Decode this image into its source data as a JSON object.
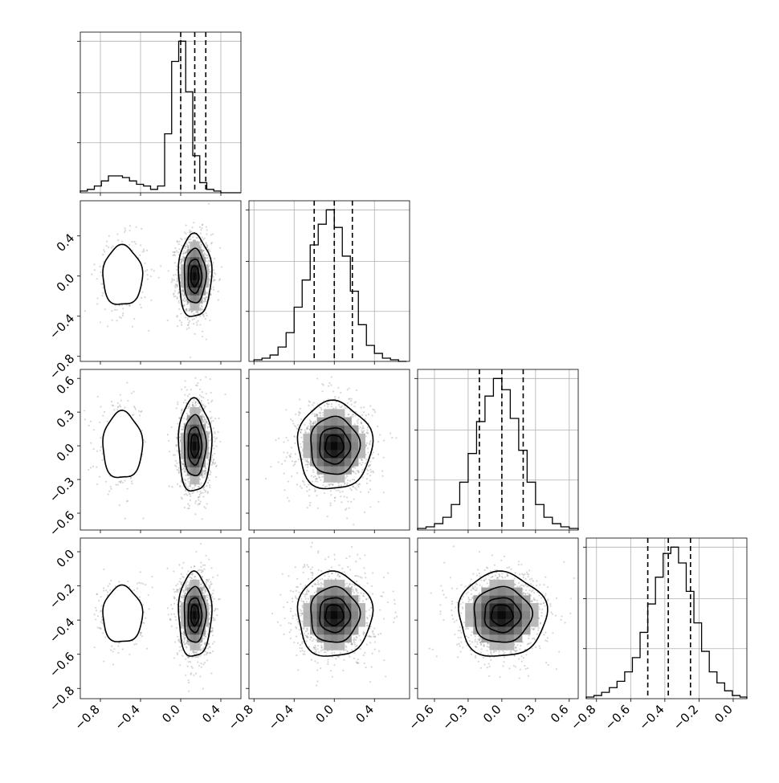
{
  "chart_data": {
    "type": "corner",
    "grid": true,
    "quantiles": [
      0.16,
      0.5,
      0.84
    ],
    "parameters": [
      {
        "range": [
          -1.0,
          0.6
        ],
        "ticks": [
          -0.8,
          -0.4,
          0.0,
          0.4
        ],
        "tick_labels": [
          "−0.8",
          "−0.4",
          "0.0",
          "0.4"
        ],
        "quantile_values": [
          0.0,
          0.14,
          0.25
        ],
        "hist_bins": [
          -1.0,
          -0.93,
          -0.86,
          -0.79,
          -0.72,
          -0.65,
          -0.58,
          -0.51,
          -0.44,
          -0.37,
          -0.3,
          -0.23,
          -0.16,
          -0.09,
          -0.02,
          0.05,
          0.12,
          0.19,
          0.26,
          0.33,
          0.4,
          0.47,
          0.54,
          0.6
        ],
        "hist_counts": [
          1,
          2,
          4,
          7,
          10,
          10,
          9,
          7,
          5,
          4,
          2,
          4,
          35,
          78,
          90,
          60,
          22,
          6,
          2,
          1,
          0,
          0,
          0
        ]
      },
      {
        "range": [
          -0.85,
          0.75
        ],
        "ticks": [
          -0.8,
          -0.4,
          0.0,
          0.4
        ],
        "tick_labels": [
          "−0.8",
          "−0.4",
          "0.0",
          "0.4"
        ],
        "quantile_values": [
          -0.2,
          0.0,
          0.18
        ],
        "hist_bins": [
          -0.8,
          -0.72,
          -0.64,
          -0.56,
          -0.48,
          -0.4,
          -0.32,
          -0.24,
          -0.16,
          -0.08,
          0.0,
          0.08,
          0.16,
          0.24,
          0.32,
          0.4,
          0.48,
          0.56,
          0.64,
          0.72
        ],
        "hist_counts": [
          1,
          2,
          4,
          9,
          18,
          34,
          51,
          73,
          86,
          95,
          84,
          66,
          44,
          23,
          10,
          5,
          2,
          1,
          0
        ]
      },
      {
        "range": [
          -0.75,
          0.68
        ],
        "ticks": [
          -0.6,
          -0.3,
          0.0,
          0.3,
          0.6
        ],
        "tick_labels": [
          "−0.6",
          "−0.3",
          "0.0",
          "0.3",
          "0.6"
        ],
        "quantile_values": [
          -0.2,
          0.0,
          0.19
        ],
        "hist_bins": [
          -0.75,
          -0.675,
          -0.6,
          -0.525,
          -0.45,
          -0.375,
          -0.3,
          -0.225,
          -0.15,
          -0.075,
          0.0,
          0.075,
          0.15,
          0.225,
          0.3,
          0.375,
          0.45,
          0.525,
          0.6,
          0.68
        ],
        "hist_counts": [
          1,
          2,
          4,
          8,
          16,
          30,
          48,
          68,
          84,
          95,
          88,
          70,
          50,
          30,
          16,
          8,
          4,
          2,
          1
        ]
      },
      {
        "range": [
          -0.86,
          0.08
        ],
        "ticks": [
          -0.8,
          -0.6,
          -0.4,
          -0.2,
          0.0
        ],
        "tick_labels": [
          "−0.8",
          "−0.6",
          "−0.4",
          "−0.2",
          "0.0"
        ],
        "quantile_values": [
          -0.5,
          -0.38,
          -0.25
        ],
        "hist_bins": [
          -0.86,
          -0.815,
          -0.77,
          -0.725,
          -0.68,
          -0.635,
          -0.59,
          -0.545,
          -0.5,
          -0.455,
          -0.41,
          -0.365,
          -0.32,
          -0.275,
          -0.23,
          -0.185,
          -0.14,
          -0.095,
          -0.05,
          -0.005,
          0.04,
          0.08
        ],
        "hist_counts": [
          1,
          2,
          4,
          7,
          11,
          17,
          26,
          42,
          60,
          77,
          92,
          96,
          86,
          68,
          48,
          30,
          17,
          10,
          5,
          2,
          1
        ]
      }
    ],
    "panels_2d": [
      {
        "row": 1,
        "col": 0,
        "modes": [
          {
            "cx": 0.14,
            "cy": 0.0,
            "sx": 0.08,
            "sy": 0.2,
            "w": 1.0
          },
          {
            "cx": -0.58,
            "cy": 0.0,
            "sx": 0.12,
            "sy": 0.18,
            "w": 0.12
          }
        ]
      },
      {
        "row": 2,
        "col": 0,
        "modes": [
          {
            "cx": 0.14,
            "cy": 0.0,
            "sx": 0.08,
            "sy": 0.2,
            "w": 1.0
          },
          {
            "cx": -0.58,
            "cy": 0.0,
            "sx": 0.12,
            "sy": 0.18,
            "w": 0.12
          }
        ]
      },
      {
        "row": 2,
        "col": 1,
        "modes": [
          {
            "cx": 0.0,
            "cy": 0.0,
            "sx": 0.18,
            "sy": 0.19,
            "w": 1.0
          }
        ]
      },
      {
        "row": 3,
        "col": 0,
        "modes": [
          {
            "cx": 0.14,
            "cy": -0.37,
            "sx": 0.08,
            "sy": 0.12,
            "w": 1.0
          },
          {
            "cx": -0.58,
            "cy": -0.37,
            "sx": 0.12,
            "sy": 0.1,
            "w": 0.12
          }
        ]
      },
      {
        "row": 3,
        "col": 1,
        "modes": [
          {
            "cx": 0.0,
            "cy": -0.37,
            "sx": 0.18,
            "sy": 0.12,
            "w": 1.0
          }
        ]
      },
      {
        "row": 3,
        "col": 2,
        "modes": [
          {
            "cx": 0.0,
            "cy": -0.37,
            "sx": 0.19,
            "sy": 0.12,
            "w": 1.0
          }
        ]
      }
    ]
  }
}
